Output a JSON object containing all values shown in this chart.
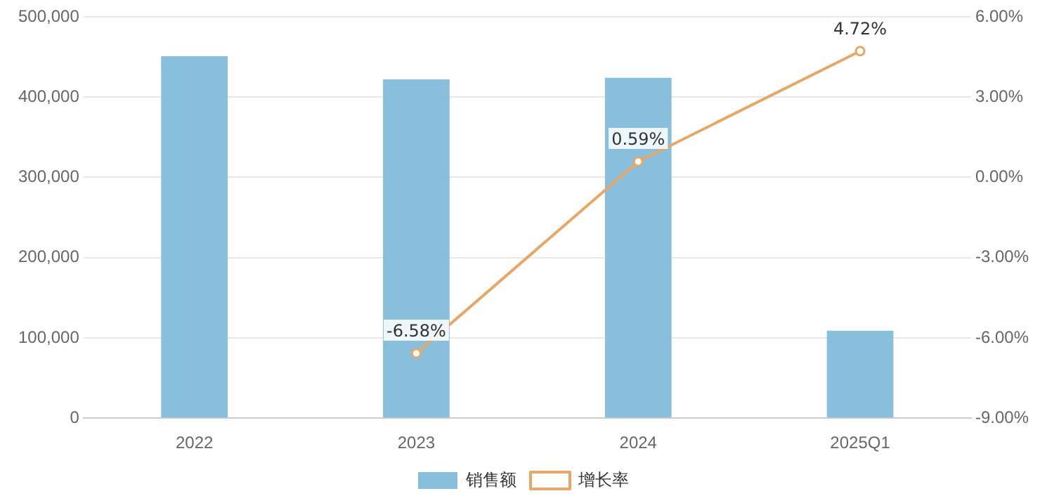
{
  "chart_data": {
    "type": "bar",
    "categories": [
      "2022",
      "2023",
      "2024",
      "2025Q1"
    ],
    "series": [
      {
        "name": "销售额",
        "color": "#87bfdc",
        "values": [
          451000,
          422000,
          424000,
          109000
        ]
      },
      {
        "name": "增长率",
        "type": "line",
        "axis": "y2",
        "color": "#e8a865",
        "values": [
          null,
          -6.58,
          0.59,
          4.72
        ],
        "value_labels": [
          null,
          "-6.58%",
          "0.59%",
          "4.72%"
        ]
      }
    ],
    "ylim": [
      0,
      500000
    ],
    "yticks": [
      0,
      {
        "value": 100000,
        "label": "100,000"
      },
      {
        "value": 200000,
        "label": "200,000"
      },
      {
        "value": 300000,
        "label": "300,000"
      },
      {
        "value": 400000,
        "label": "400,000"
      },
      {
        "value": 500000,
        "label": "500,000"
      }
    ],
    "y2lim": [
      -9,
      6
    ],
    "y2ticks": [
      {
        "value": -9,
        "label": "-9.00%"
      },
      {
        "value": -6,
        "label": "-6.00%"
      },
      {
        "value": -3,
        "label": "-3.00%"
      },
      {
        "value": 0,
        "label": "0.00%"
      },
      {
        "value": 3,
        "label": "3.00%"
      },
      {
        "value": 6,
        "label": "6.00%"
      }
    ],
    "grid": "y",
    "legend": "bottom",
    "marker": "circle",
    "line_style": "solid"
  }
}
